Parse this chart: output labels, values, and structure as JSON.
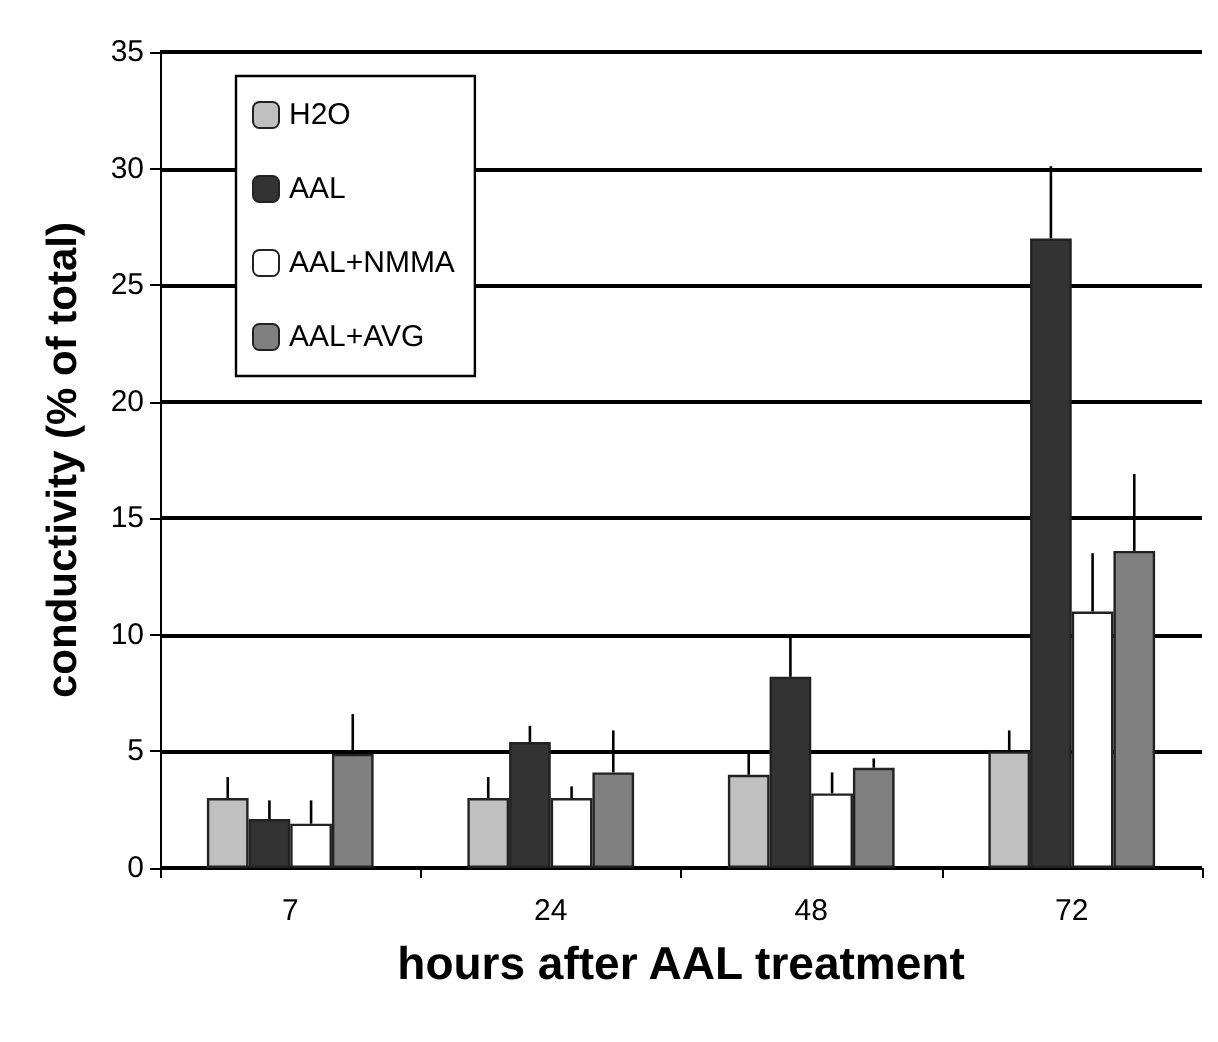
{
  "chart_data": {
    "type": "bar",
    "xlabel": "hours after AAL treatment",
    "ylabel": "conductivity (% of total)",
    "categories": [
      "7",
      "24",
      "48",
      "72"
    ],
    "series": [
      {
        "name": "H2O",
        "color": "#c0c0c0",
        "values": [
          3.0,
          3.0,
          4.0,
          5.0
        ],
        "errors": [
          [
            3.0,
            3.9
          ],
          [
            3.0,
            3.9
          ],
          [
            4.0,
            4.9
          ],
          [
            5.0,
            5.9
          ]
        ]
      },
      {
        "name": "AAL",
        "color": "#333333",
        "values": [
          2.1,
          5.4,
          8.2,
          27.0
        ],
        "errors": [
          [
            2.1,
            2.9
          ],
          [
            5.4,
            6.1
          ],
          [
            8.2,
            9.9
          ],
          [
            27.0,
            30.1
          ]
        ]
      },
      {
        "name": "AAL+NMMA",
        "color": "#ffffff",
        "values": [
          1.9,
          3.0,
          3.2,
          11.0
        ],
        "errors": [
          [
            1.9,
            2.9
          ],
          [
            3.0,
            3.5
          ],
          [
            3.2,
            4.1
          ],
          [
            11.0,
            13.5
          ]
        ]
      },
      {
        "name": "AAL+AVG",
        "color": "#808080",
        "values": [
          4.9,
          4.1,
          4.3,
          13.6
        ],
        "errors": [
          [
            4.9,
            6.6
          ],
          [
            4.1,
            5.9
          ],
          [
            4.3,
            4.7
          ],
          [
            13.6,
            16.9
          ]
        ]
      }
    ],
    "ylim": [
      0,
      35
    ],
    "yticks": [
      0,
      5,
      10,
      15,
      20,
      25,
      30,
      35
    ],
    "grid": "y",
    "legend": "top left"
  }
}
